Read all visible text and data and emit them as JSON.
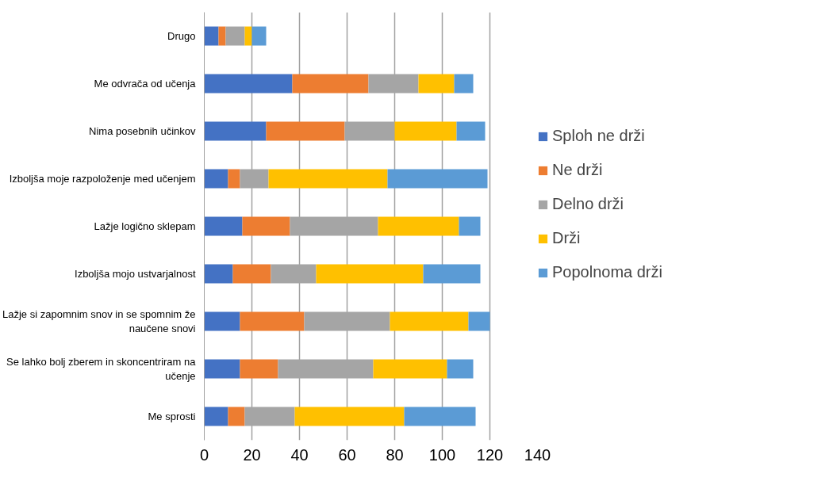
{
  "chart_data": {
    "type": "bar",
    "orientation": "horizontal",
    "stacked": true,
    "categories": [
      "Drugo",
      "Me odvrača od učenja",
      "Nima posebnih učinkov",
      "Izboljša moje razpoloženje med učenjem",
      "Lažje logično sklepam",
      "Izboljša mojo ustvarjalnost",
      "Lažje si zapomnim snov in se spomnim že naučene snovi",
      "Se lahko bolj zberem in skoncentriram na učenje",
      "Me sprosti"
    ],
    "series": [
      {
        "name": "Sploh ne drži",
        "color": "#4472c4",
        "values": [
          6,
          37,
          26,
          10,
          16,
          12,
          15,
          15,
          10
        ]
      },
      {
        "name": "Ne drži",
        "color": "#ed7d31",
        "values": [
          3,
          32,
          33,
          5,
          20,
          16,
          27,
          16,
          7
        ]
      },
      {
        "name": "Delno drži",
        "color": "#a5a5a5",
        "values": [
          8,
          21,
          21,
          12,
          37,
          19,
          36,
          40,
          21
        ]
      },
      {
        "name": "Drži",
        "color": "#ffc000",
        "values": [
          3,
          15,
          26,
          50,
          34,
          45,
          33,
          31,
          46
        ]
      },
      {
        "name": "Popolnoma drži",
        "color": "#5b9bd5",
        "values": [
          6,
          8,
          12,
          42,
          9,
          24,
          9,
          11,
          30
        ]
      }
    ],
    "xlim": [
      0,
      140
    ],
    "xticks": [
      0,
      20,
      40,
      60,
      80,
      100,
      120,
      140
    ],
    "grid": "x",
    "legend": "right"
  }
}
